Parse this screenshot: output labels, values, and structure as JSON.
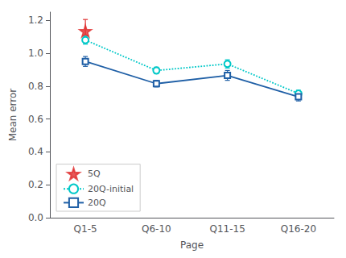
{
  "chart_data": {
    "type": "line",
    "categories": [
      "Q1-5",
      "Q6-10",
      "Q11-15",
      "Q16-20"
    ],
    "series": [
      {
        "name": "5Q",
        "type": "scatter",
        "color": "#e03030",
        "marker": "star",
        "values": [
          1.135,
          null,
          null,
          null
        ],
        "errors": [
          0.07,
          null,
          null,
          null
        ]
      },
      {
        "name": "20Q-initial",
        "type": "line",
        "color": "#00c8c8",
        "marker": "circle",
        "line_style": "dotted",
        "values": [
          1.08,
          0.895,
          0.935,
          0.755
        ],
        "errors": [
          0.025,
          0.02,
          0.025,
          0.02
        ]
      },
      {
        "name": "20Q",
        "type": "line",
        "color": "#1f5fa6",
        "marker": "square",
        "line_style": "solid",
        "values": [
          0.95,
          0.815,
          0.865,
          0.735
        ],
        "errors": [
          0.03,
          0.02,
          0.03,
          0.025
        ]
      }
    ],
    "xlabel": "Page",
    "ylabel": "Mean error",
    "ylim": [
      0.0,
      1.25
    ],
    "yticks": [
      {
        "value": 0.0,
        "label": "0.0"
      },
      0.2,
      0.4,
      0.6,
      0.8,
      {
        "value": 1.0,
        "label": "1.0"
      },
      1.2
    ],
    "grid": false,
    "legend": "lower left"
  }
}
